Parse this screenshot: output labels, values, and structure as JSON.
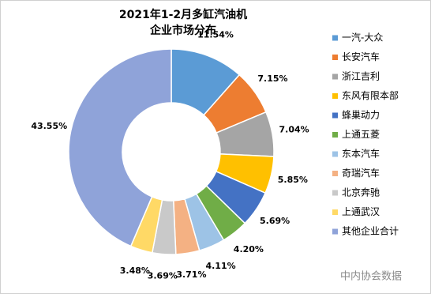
{
  "chart_data": {
    "type": "donut",
    "title": "2021年1-2月多缸汽油机",
    "subtitle": "企业市场分布",
    "categories": [
      "一汽-大众",
      "长安汽车",
      "浙江吉利",
      "东风有限本部",
      "蜂巢动力",
      "上通五菱",
      "东本汽车",
      "奇瑞汽车",
      "北京奔驰",
      "上通武汉",
      "其他企业合计"
    ],
    "values": [
      11.54,
      7.15,
      7.04,
      5.85,
      5.69,
      4.2,
      4.11,
      3.71,
      3.69,
      3.48,
      43.55
    ],
    "value_labels": [
      "11.54%",
      "7.15%",
      "7.04%",
      "5.85%",
      "5.69%",
      "4.20%",
      "4.11%",
      "3.71%",
      "3.69%",
      "3.48%",
      "43.55%"
    ],
    "colors": [
      "#5b9bd5",
      "#ed7d31",
      "#a5a5a5",
      "#ffc000",
      "#4472c4",
      "#70ad47",
      "#9dc3e6",
      "#f4b183",
      "#c9c9c9",
      "#ffd966",
      "#8fa3d9"
    ],
    "legend": "right"
  },
  "watermark": "中内协会数据"
}
